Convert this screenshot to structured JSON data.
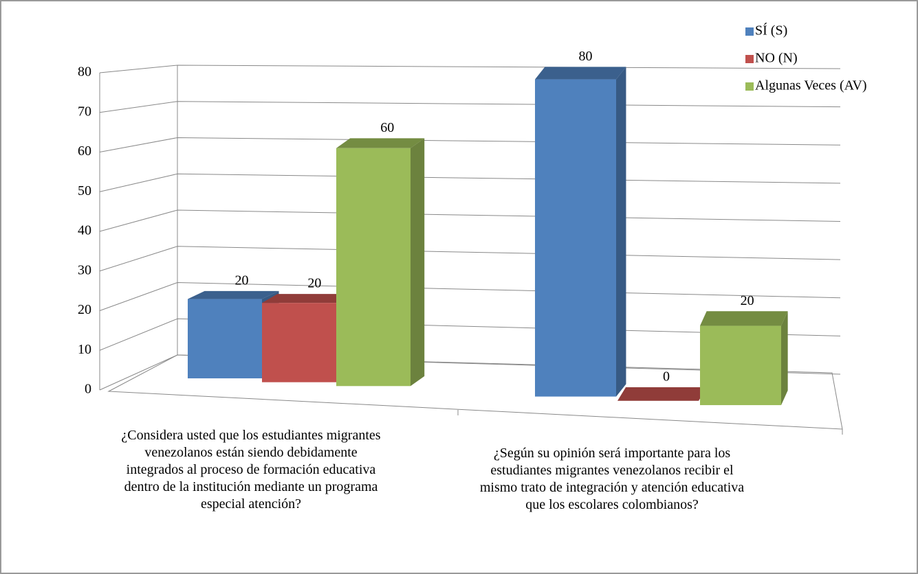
{
  "chart_data": {
    "type": "bar3d",
    "categories": [
      "¿Considera usted que los estudiantes migrantes venezolanos están siendo debidamente integrados al proceso de formación educativa dentro de la institución mediante un programa especial atención?",
      "¿Según su opinión será importante para los estudiantes migrantes venezolanos recibir el mismo trato de integración y atención educativa que los escolares colombianos?"
    ],
    "series": [
      {
        "name": "SÍ (S)",
        "color": "#4f81bd",
        "values": [
          20,
          80
        ]
      },
      {
        "name": "NO (N)",
        "color": "#c0504d",
        "values": [
          20,
          0
        ]
      },
      {
        "name": "Algunas Veces (AV)",
        "color": "#9bbb59",
        "values": [
          60,
          20
        ]
      }
    ],
    "ylim": [
      0,
      80
    ],
    "yticks": [
      0,
      10,
      20,
      30,
      40,
      50,
      60,
      70,
      80
    ],
    "legend": "top-right"
  }
}
